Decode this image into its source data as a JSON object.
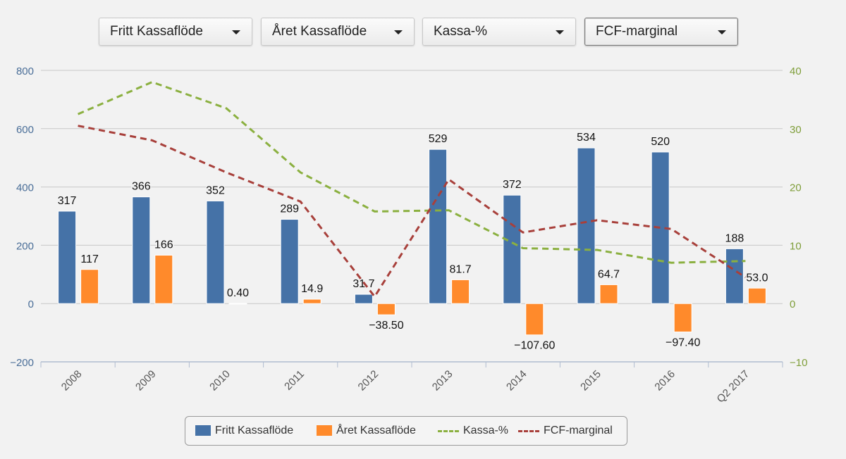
{
  "toolbar": {
    "dropdowns": [
      {
        "label": "Fritt Kassaflöde"
      },
      {
        "label": "Året Kassaflöde"
      },
      {
        "label": "Kassa-%"
      },
      {
        "label": "FCF-marginal"
      }
    ],
    "caret_icon": "caret-down-icon"
  },
  "chart_data": {
    "type": "bar",
    "categories": [
      "2008",
      "2009",
      "2010",
      "2011",
      "2012",
      "2013",
      "2014",
      "2015",
      "2016",
      "Q2 2017"
    ],
    "y_left": {
      "min": -200,
      "max": 800,
      "ticks": [
        "−200",
        "0",
        "200",
        "400",
        "600",
        "800"
      ],
      "tick_values": [
        -200,
        0,
        200,
        400,
        600,
        800
      ],
      "color": "#4a6e98"
    },
    "y_right": {
      "min": -10,
      "max": 40,
      "ticks": [
        "−10",
        "0",
        "10",
        "20",
        "30",
        "40"
      ],
      "tick_values": [
        -10,
        0,
        10,
        20,
        30,
        40
      ],
      "color": "#7f9e3a"
    },
    "grid": true,
    "legend_position": "bottom",
    "series": [
      {
        "name": "Fritt Kassaflöde",
        "kind": "bar",
        "axis": "left",
        "color": "#4572a7",
        "values": [
          317,
          366,
          352,
          289,
          31.7,
          529,
          372,
          534,
          520,
          188
        ],
        "labels": [
          "317",
          "366",
          "352",
          "289",
          "31.7",
          "529",
          "372",
          "534",
          "520",
          "188"
        ]
      },
      {
        "name": "Året Kassaflöde",
        "kind": "bar",
        "axis": "left",
        "color": "#ff8a2b",
        "values": [
          117,
          166,
          0.4,
          14.9,
          -38.5,
          81.7,
          -107.6,
          64.7,
          -97.4,
          53.0
        ],
        "labels": [
          "117",
          "166",
          "0.40",
          "14.9",
          "−38.50",
          "81.7",
          "−107.60",
          "64.7",
          "−97.40",
          "53.0"
        ]
      },
      {
        "name": "Kassa-%",
        "kind": "line",
        "axis": "right",
        "color": "#8bb040",
        "values": [
          32.5,
          38,
          33.5,
          22.5,
          15.8,
          16,
          9.5,
          9.2,
          7,
          7.3
        ]
      },
      {
        "name": "FCF-marginal",
        "kind": "line",
        "axis": "right",
        "color": "#a8403b",
        "values": [
          30.5,
          28,
          22.5,
          17.5,
          1.2,
          21.3,
          12.2,
          14.3,
          12.8,
          4.5
        ]
      }
    ]
  }
}
